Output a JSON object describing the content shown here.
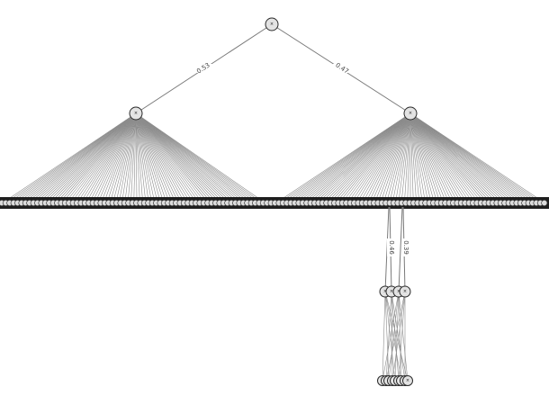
{
  "diagram": {
    "node_glyph": "×",
    "leaf_glyph": "×",
    "colors": {
      "edge": "#7a7a7a",
      "node_fill": "#e3e3e3",
      "node_stroke": "#2a2a2a",
      "band": "#1e1e1e"
    },
    "top_edges": [
      {
        "label": "0.53"
      },
      {
        "label": "0.47"
      }
    ],
    "lower_edges": [
      {
        "label": "0.46"
      },
      {
        "label": "0.39"
      }
    ]
  }
}
